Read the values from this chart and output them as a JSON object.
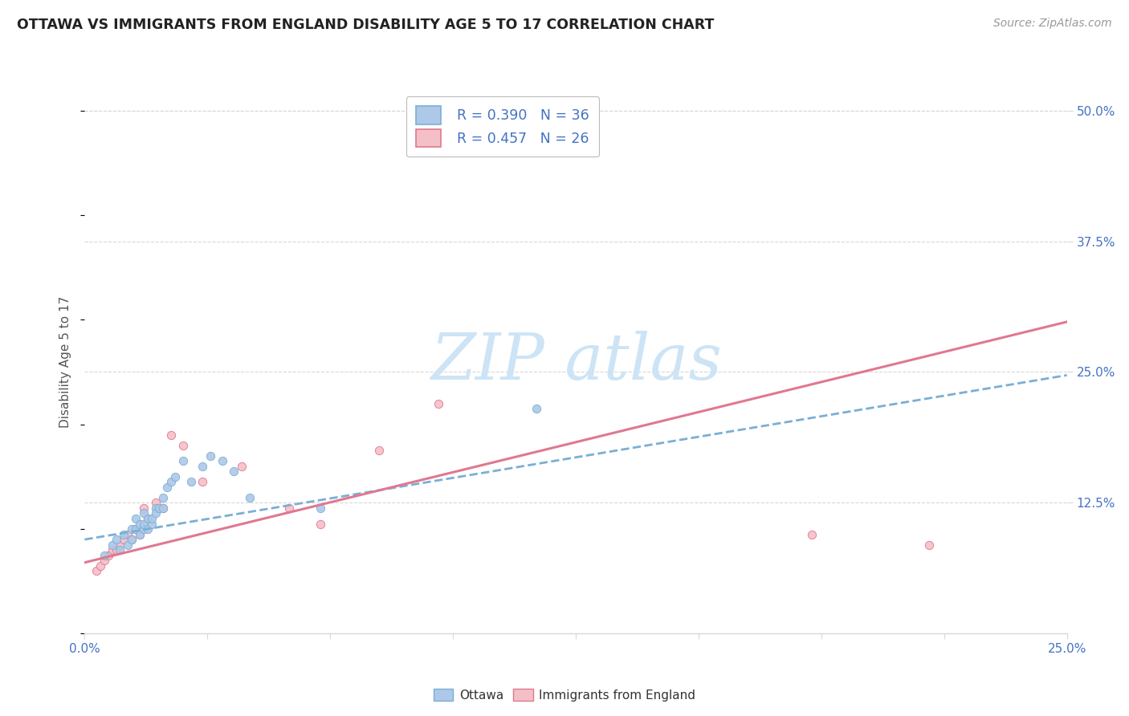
{
  "title": "OTTAWA VS IMMIGRANTS FROM ENGLAND DISABILITY AGE 5 TO 17 CORRELATION CHART",
  "source": "Source: ZipAtlas.com",
  "ylabel": "Disability Age 5 to 17",
  "xlim": [
    0.0,
    0.25
  ],
  "ylim": [
    0.0,
    0.52
  ],
  "xticks": [
    0.0,
    0.03125,
    0.0625,
    0.09375,
    0.125,
    0.15625,
    0.1875,
    0.21875,
    0.25
  ],
  "ytick_labels_right": [
    "12.5%",
    "25.0%",
    "37.5%",
    "50.0%"
  ],
  "ytick_positions_right": [
    0.125,
    0.25,
    0.375,
    0.5
  ],
  "legend_r1": "R = 0.390",
  "legend_n1": "N = 36",
  "legend_r2": "R = 0.457",
  "legend_n2": "N = 26",
  "ottawa_color": "#adc8e8",
  "ottawa_edge_color": "#7aafd4",
  "england_color": "#f5bfc8",
  "england_edge_color": "#e07890",
  "ottawa_x": [
    0.005,
    0.007,
    0.008,
    0.009,
    0.01,
    0.011,
    0.012,
    0.012,
    0.013,
    0.013,
    0.014,
    0.014,
    0.015,
    0.015,
    0.015,
    0.016,
    0.016,
    0.017,
    0.017,
    0.018,
    0.018,
    0.019,
    0.02,
    0.02,
    0.021,
    0.022,
    0.023,
    0.025,
    0.027,
    0.03,
    0.032,
    0.035,
    0.038,
    0.042,
    0.06,
    0.115
  ],
  "ottawa_y": [
    0.075,
    0.085,
    0.09,
    0.08,
    0.095,
    0.085,
    0.09,
    0.1,
    0.1,
    0.11,
    0.095,
    0.105,
    0.1,
    0.105,
    0.115,
    0.1,
    0.11,
    0.105,
    0.11,
    0.12,
    0.115,
    0.12,
    0.13,
    0.12,
    0.14,
    0.145,
    0.15,
    0.165,
    0.145,
    0.16,
    0.17,
    0.165,
    0.155,
    0.13,
    0.12,
    0.215
  ],
  "england_x": [
    0.003,
    0.004,
    0.005,
    0.006,
    0.007,
    0.008,
    0.009,
    0.01,
    0.011,
    0.012,
    0.013,
    0.014,
    0.015,
    0.016,
    0.018,
    0.02,
    0.022,
    0.025,
    0.03,
    0.04,
    0.052,
    0.06,
    0.075,
    0.09,
    0.185,
    0.215
  ],
  "england_y": [
    0.06,
    0.065,
    0.07,
    0.075,
    0.08,
    0.08,
    0.085,
    0.09,
    0.095,
    0.09,
    0.1,
    0.095,
    0.12,
    0.11,
    0.125,
    0.12,
    0.19,
    0.18,
    0.145,
    0.16,
    0.12,
    0.105,
    0.175,
    0.22,
    0.095,
    0.085
  ],
  "ottawa_trend_x": [
    0.0,
    0.25
  ],
  "ottawa_trend_y": [
    0.09,
    0.247
  ],
  "england_trend_x": [
    0.0,
    0.25
  ],
  "england_trend_y": [
    0.068,
    0.298
  ],
  "grid_color": "#d8d8d8",
  "tick_color": "#4472c4",
  "title_color": "#222222",
  "ylabel_color": "#555555",
  "watermark_text": "ZIPatlas",
  "watermark_color": "#cce4f5"
}
